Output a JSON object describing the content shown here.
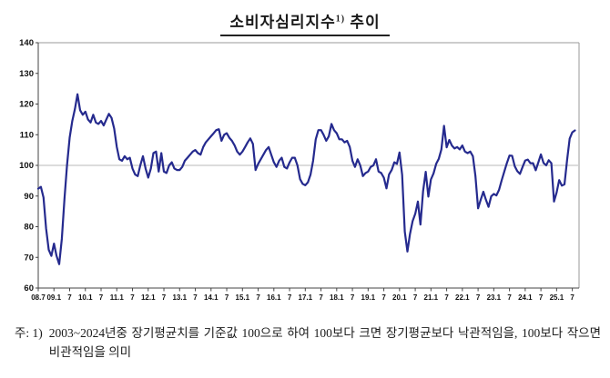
{
  "title": {
    "main": "소비자심리지수",
    "sup": "1)",
    "tail": " 추이"
  },
  "note": {
    "label": "주: 1)",
    "text": "2003~2024년중 장기평균치를 기준값 100으로 하여 100보다 크면 장기평균보다 낙관적임을, 100보다 작으면 비관적임을 의미"
  },
  "chart_data": {
    "type": "line",
    "title": "소비자심리지수 추이",
    "baseline_note": "기준값 100 = 2003~2024년중 장기평균",
    "x_labels": [
      "08.7",
      "09.1",
      "7",
      "10.1",
      "7",
      "11.1",
      "7",
      "12.1",
      "7",
      "13.1",
      "7",
      "14.1",
      "7",
      "15.1",
      "7",
      "16.1",
      "7",
      "17.1",
      "7",
      "18.1",
      "7",
      "19.1",
      "7",
      "20.1",
      "7",
      "21.1",
      "7",
      "22.1",
      "7",
      "23.1",
      "7",
      "24.1",
      "7",
      "25.1",
      "7"
    ],
    "x_start": "2008.07",
    "x_end": "2025.08",
    "x_interval": "monthly",
    "ylim": [
      60,
      140
    ],
    "y_ticks": [
      140,
      130,
      120,
      110,
      100,
      90,
      80,
      70,
      60
    ],
    "baseline": 100,
    "grid": "single horizontal reference line at 100",
    "legend": "none",
    "line_color": "#252a8e",
    "frame_color": "#9a9a9a",
    "axis_color": "#444444",
    "baseline_color": "#b8b8b8",
    "series": [
      {
        "name": "소비자심리지수(CCSI)",
        "monthly_from": "2008.7",
        "values": [
          92.4,
          93.0,
          89.5,
          79.5,
          72.5,
          70.5,
          74.5,
          70.5,
          67.8,
          76.0,
          89.0,
          100.0,
          109.0,
          114.5,
          118.4,
          123.2,
          118.0,
          116.5,
          117.5,
          115.0,
          114.0,
          116.5,
          114.0,
          113.5,
          114.5,
          113.0,
          115.0,
          116.8,
          115.5,
          112.0,
          106.0,
          102.0,
          101.5,
          103.0,
          102.0,
          102.5,
          99.0,
          97.0,
          96.5,
          100.0,
          103.0,
          99.0,
          96.0,
          99.0,
          104.0,
          104.5,
          98.0,
          104.0,
          98.0,
          97.5,
          100.0,
          101.0,
          99.0,
          98.5,
          98.5,
          99.5,
          101.5,
          102.5,
          103.5,
          104.5,
          105.0,
          104.0,
          103.5,
          106.0,
          107.5,
          108.5,
          109.5,
          110.5,
          111.5,
          111.8,
          108.0,
          110.0,
          110.5,
          109.0,
          108.0,
          106.5,
          104.5,
          103.5,
          104.5,
          106.0,
          107.5,
          108.8,
          107.0,
          98.5,
          100.5,
          102.0,
          103.5,
          105.0,
          106.0,
          103.5,
          101.0,
          99.5,
          101.5,
          102.5,
          99.5,
          99.0,
          101.0,
          102.5,
          102.5,
          100.0,
          95.5,
          94.0,
          93.5,
          94.5,
          97.0,
          101.5,
          108.5,
          111.5,
          111.5,
          110.0,
          108.0,
          109.5,
          113.5,
          111.5,
          110.5,
          108.5,
          108.5,
          107.5,
          108.0,
          106.0,
          101.5,
          99.5,
          102.0,
          100.0,
          96.5,
          97.5,
          98.0,
          99.5,
          100.0,
          102.0,
          98.0,
          97.5,
          96.0,
          92.5,
          97.0,
          98.5,
          101.0,
          100.5,
          104.2,
          96.9,
          78.4,
          71.9,
          77.6,
          81.8,
          84.2,
          88.2,
          80.7,
          91.6,
          97.9,
          89.8,
          95.4,
          97.4,
          100.5,
          102.2,
          105.2,
          112.9,
          105.9,
          108.3,
          106.5,
          105.5,
          106.0,
          105.2,
          106.5,
          104.5,
          104.0,
          104.5,
          103.0,
          96.5,
          86.0,
          88.8,
          91.4,
          88.8,
          86.5,
          89.9,
          90.7,
          90.2,
          92.0,
          95.1,
          98.0,
          100.7,
          103.2,
          103.1,
          99.7,
          98.1,
          97.2,
          99.5,
          101.6,
          101.9,
          100.7,
          100.7,
          98.4,
          100.9,
          103.6,
          100.8,
          100.0,
          101.7,
          100.7,
          88.2,
          91.2,
          95.2,
          93.4,
          93.8,
          101.8,
          108.7,
          110.8,
          111.4
        ]
      }
    ]
  }
}
